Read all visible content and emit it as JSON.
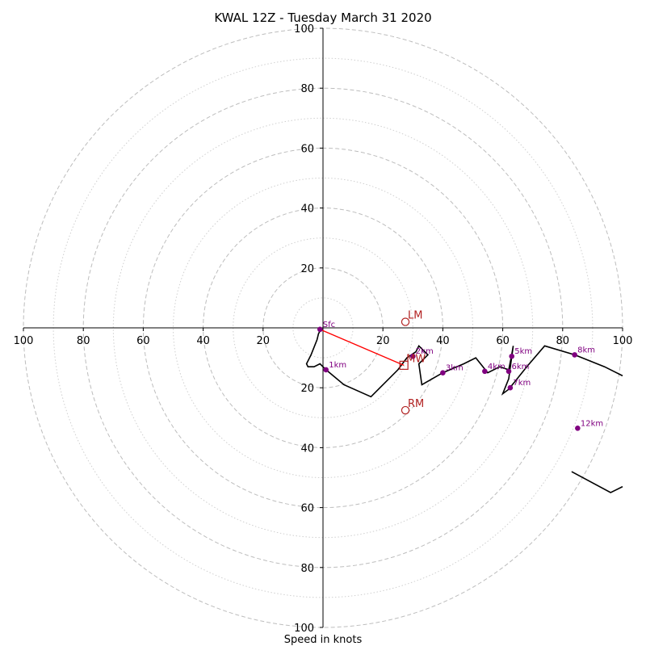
{
  "chart_data": {
    "type": "hodograph",
    "title": "KWAL 12Z - Tuesday March 31 2020",
    "xlabel": "Speed in knots",
    "range": 100,
    "rings_major": [
      20,
      40,
      60,
      80,
      100
    ],
    "rings_minor": [
      10,
      30,
      50,
      70,
      90
    ],
    "tick_values": [
      20,
      40,
      60,
      80,
      100
    ],
    "x_tick_labels": [
      "100",
      "80",
      "60",
      "40",
      "20",
      "20",
      "40",
      "60",
      "80",
      "100"
    ],
    "y_tick_labels_top": [
      "20",
      "40",
      "60",
      "80",
      "100"
    ],
    "y_tick_labels_bottom": [
      "20",
      "40",
      "60",
      "80",
      "100"
    ],
    "hodograph_line": [
      [
        -1,
        -1
      ],
      [
        -1.5,
        -2
      ],
      [
        -2,
        -4
      ],
      [
        -4,
        -9
      ],
      [
        -5.5,
        -12
      ],
      [
        -5,
        -13
      ],
      [
        -3,
        -13
      ],
      [
        -1,
        -12
      ],
      [
        1,
        -14
      ],
      [
        7,
        -19
      ],
      [
        16,
        -23
      ],
      [
        19,
        -20
      ],
      [
        25,
        -14
      ],
      [
        28,
        -10
      ],
      [
        31,
        -8
      ],
      [
        32,
        -6
      ],
      [
        35,
        -9
      ],
      [
        32,
        -12
      ],
      [
        33,
        -19
      ],
      [
        40,
        -15
      ],
      [
        47,
        -12
      ],
      [
        51,
        -10
      ],
      [
        55,
        -15
      ],
      [
        59,
        -13
      ],
      [
        62,
        -14
      ],
      [
        63,
        -9
      ],
      [
        63.5,
        -6
      ],
      [
        62,
        -17
      ],
      [
        60,
        -22
      ],
      [
        62,
        -20.5
      ],
      [
        68,
        -13
      ],
      [
        74,
        -6
      ],
      [
        84,
        -9
      ],
      [
        94,
        -13
      ],
      [
        100,
        -16
      ]
    ],
    "hodograph_line_2": [
      [
        83,
        -48
      ],
      [
        96,
        -55
      ],
      [
        100,
        -53
      ]
    ],
    "height_markers": [
      {
        "label": "Sfc",
        "u": -1,
        "v": -0.5
      },
      {
        "label": "1km",
        "u": 1,
        "v": -14
      },
      {
        "label": "2km",
        "u": 30,
        "v": -9.5
      },
      {
        "label": "3km",
        "u": 40,
        "v": -15
      },
      {
        "label": "4km",
        "u": 54,
        "v": -14.5
      },
      {
        "label": "5km",
        "u": 63,
        "v": -9.5
      },
      {
        "label": "6km",
        "u": 62,
        "v": -14.5
      },
      {
        "label": "7km",
        "u": 62.5,
        "v": -20
      },
      {
        "label": "8km",
        "u": 84,
        "v": -9
      },
      {
        "label": "12km",
        "u": 85,
        "v": -33.5
      }
    ],
    "motions": [
      {
        "label": "LM",
        "u": 27.5,
        "v": 2,
        "marker": "circle"
      },
      {
        "label": "RM",
        "u": 27.5,
        "v": -27.5,
        "marker": "circle"
      },
      {
        "label": "MW",
        "u": 27,
        "v": -12.5,
        "marker": "square"
      }
    ],
    "bulk_shear": {
      "from": [
        -1,
        -0.5
      ],
      "to": [
        27,
        -12.5
      ]
    },
    "colors": {
      "hodograph": "#000000",
      "height_markers": "#800080",
      "motions": "#b22222",
      "shear": "#ff0000",
      "rings": "#bdbdbd"
    }
  }
}
